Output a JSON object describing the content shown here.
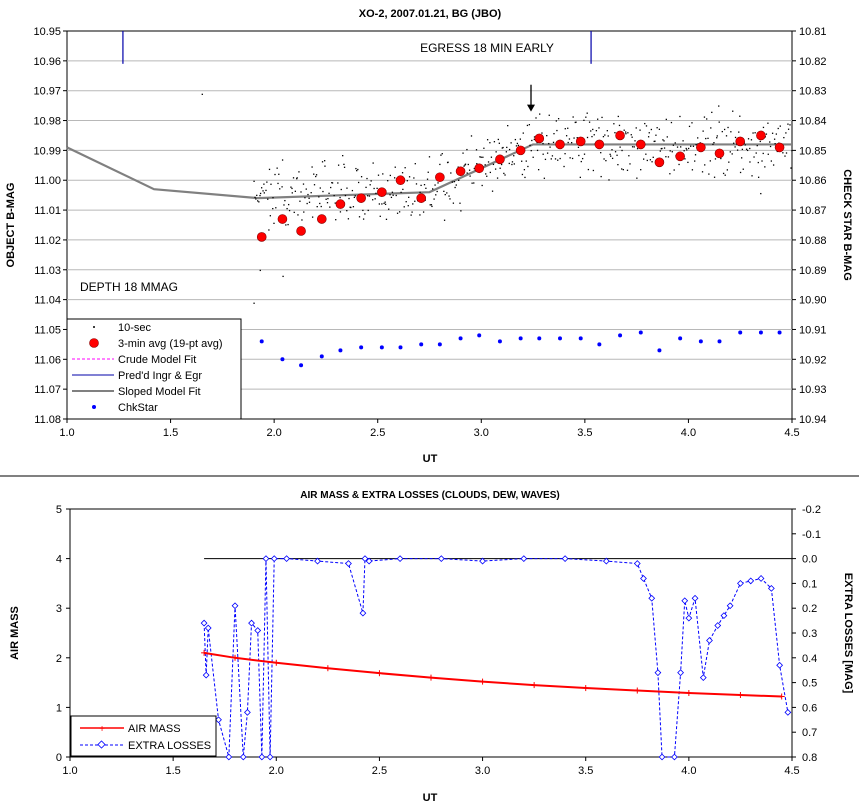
{
  "chart_data": [
    {
      "type": "scatter",
      "title": "XO-2, 2007.01.21, BG (JBO)",
      "xlabel": "UT",
      "ylabel": "OBJECT B-MAG",
      "y2label": "CHECK STAR B-MAG",
      "xlim": [
        1.0,
        4.5
      ],
      "ylim": [
        10.95,
        11.08
      ],
      "y_inverted": true,
      "y2lim": [
        10.81,
        10.94
      ],
      "xticks": [
        "1.0",
        "1.5",
        "2.0",
        "2.5",
        "3.0",
        "3.5",
        "4.0",
        "4.5"
      ],
      "yticks": [
        "10.95",
        "10.96",
        "10.97",
        "10.98",
        "10.99",
        "11.00",
        "11.01",
        "11.02",
        "11.03",
        "11.04",
        "11.05",
        "11.06",
        "11.07",
        "11.08"
      ],
      "y2ticks": [
        "10.81",
        "10.82",
        "10.83",
        "10.84",
        "10.85",
        "10.86",
        "10.87",
        "10.88",
        "10.89",
        "10.90",
        "10.91",
        "10.92",
        "10.93",
        "10.94"
      ],
      "grid": "horizontal",
      "legend_position": "bottom-left",
      "annotations": [
        {
          "text": "EGRESS 18 MIN EARLY",
          "x": 3.23,
          "y": 10.962
        },
        {
          "text": "DEPTH 18 MMAG",
          "x": 1.05,
          "y": 11.043
        }
      ],
      "arrow": {
        "x": 3.24,
        "y_from": 10.968,
        "y_to": 10.977
      },
      "series": [
        {
          "name": "10-sec",
          "marker": "dot",
          "color": "#000000",
          "seed": 7,
          "start": 1.9,
          "end": 4.5,
          "count": 560,
          "scatter": 0.0075,
          "extra_points": [
            [
              1.65,
              10.971
            ],
            [
              1.9,
              11.041
            ],
            [
              1.93,
              11.03
            ],
            [
              2.04,
              11.032
            ]
          ]
        },
        {
          "name": "3-min avg (19-pt avg)",
          "marker": "circle",
          "color": "#ff0000",
          "x": [
            1.94,
            2.04,
            2.13,
            2.23,
            2.32,
            2.42,
            2.52,
            2.61,
            2.71,
            2.8,
            2.9,
            2.99,
            3.09,
            3.19,
            3.28,
            3.38,
            3.48,
            3.57,
            3.67,
            3.77,
            3.86,
            3.96,
            4.06,
            4.15,
            4.25,
            4.35,
            4.44
          ],
          "y": [
            11.019,
            11.013,
            11.017,
            11.013,
            11.008,
            11.006,
            11.004,
            11.0,
            11.006,
            10.999,
            10.997,
            10.996,
            10.993,
            10.99,
            10.986,
            10.988,
            10.987,
            10.988,
            10.985,
            10.988,
            10.994,
            10.992,
            10.989,
            10.991,
            10.987,
            10.985,
            10.989
          ]
        },
        {
          "name": "Crude Model Fit",
          "line": "dashed",
          "color": "#ff00ff",
          "x": [],
          "y": []
        },
        {
          "name": "Pred'd Ingr & Egr",
          "line": "solid",
          "color": "#0000aa",
          "x": [
            1.27,
            3.53
          ],
          "y_top": 10.95,
          "y_bottom": 10.961
        },
        {
          "name": "Sloped Model Fit",
          "line": "solid",
          "color": "#808080",
          "x": [
            1.0,
            1.42,
            1.92,
            2.75,
            3.25,
            4.5
          ],
          "y": [
            10.989,
            11.003,
            11.006,
            11.004,
            10.988,
            10.988
          ]
        },
        {
          "name": "ChkStar",
          "marker": "dot-large",
          "color": "#0000ff",
          "axis": "y2",
          "x": [
            1.94,
            2.04,
            2.13,
            2.23,
            2.32,
            2.42,
            2.52,
            2.61,
            2.71,
            2.8,
            2.9,
            2.99,
            3.09,
            3.19,
            3.28,
            3.38,
            3.48,
            3.57,
            3.67,
            3.77,
            3.86,
            3.96,
            4.06,
            4.15,
            4.25,
            4.35,
            4.44
          ],
          "y": [
            10.914,
            10.92,
            10.922,
            10.919,
            10.917,
            10.916,
            10.916,
            10.916,
            10.915,
            10.915,
            10.913,
            10.912,
            10.914,
            10.913,
            10.913,
            10.913,
            10.913,
            10.915,
            10.912,
            10.911,
            10.917,
            10.913,
            10.914,
            10.914,
            10.911,
            10.911,
            10.911
          ]
        }
      ]
    },
    {
      "type": "line",
      "title": "AIR MASS & EXTRA LOSSES (CLOUDS, DEW, WAVES)",
      "xlabel": "UT",
      "ylabel": "AIR MASS",
      "y2label": "EXTRA LOSSES [MAG]",
      "xlim": [
        1.0,
        4.5
      ],
      "ylim": [
        0,
        5
      ],
      "y2lim": [
        -0.2,
        0.8
      ],
      "y2_inverted": true,
      "xticks": [
        "1.0",
        "1.5",
        "2.0",
        "2.5",
        "3.0",
        "3.5",
        "4.0",
        "4.5"
      ],
      "yticks": [
        "0",
        "1",
        "2",
        "3",
        "4",
        "5"
      ],
      "y2ticks": [
        "-0.2",
        "-0.1",
        "0.0",
        "0.1",
        "0.2",
        "0.3",
        "0.4",
        "0.5",
        "0.6",
        "0.7",
        "0.8"
      ],
      "grid": "none",
      "legend_position": "bottom-left",
      "reference_line": {
        "y2": 0.0,
        "x": [
          1.65,
          4.5
        ],
        "color": "#000000"
      },
      "series": [
        {
          "name": "AIR MASS",
          "color": "#ff0000",
          "marker": "plus",
          "x": [
            1.65,
            1.8,
            2.0,
            2.25,
            2.5,
            2.75,
            3.0,
            3.25,
            3.5,
            3.75,
            4.0,
            4.25,
            4.45
          ],
          "y": [
            2.1,
            2.0,
            1.9,
            1.79,
            1.69,
            1.6,
            1.52,
            1.45,
            1.39,
            1.34,
            1.29,
            1.25,
            1.22
          ]
        },
        {
          "name": "EXTRA LOSSES",
          "color": "#0000ff",
          "marker": "diamond",
          "line": "dashed",
          "axis": "y2",
          "x": [
            1.65,
            1.66,
            1.67,
            1.72,
            1.77,
            1.8,
            1.84,
            1.86,
            1.88,
            1.91,
            1.93,
            1.95,
            1.97,
            1.99,
            2.05,
            2.2,
            2.35,
            2.42,
            2.43,
            2.45,
            2.6,
            2.8,
            3.0,
            3.2,
            3.4,
            3.6,
            3.75,
            3.78,
            3.82,
            3.85,
            3.87,
            3.93,
            3.96,
            3.98,
            4.0,
            4.03,
            4.07,
            4.1,
            4.14,
            4.17,
            4.2,
            4.25,
            4.3,
            4.35,
            4.4,
            4.44,
            4.48
          ],
          "y": [
            0.26,
            0.47,
            0.28,
            0.65,
            0.8,
            0.19,
            0.8,
            0.62,
            0.26,
            0.29,
            0.8,
            0.0,
            0.8,
            0.0,
            0.0,
            0.01,
            0.02,
            0.22,
            0.0,
            0.01,
            0.0,
            0.0,
            0.01,
            0.0,
            0.0,
            0.01,
            0.02,
            0.08,
            0.16,
            0.46,
            0.8,
            0.8,
            0.46,
            0.17,
            0.24,
            0.16,
            0.48,
            0.33,
            0.27,
            0.23,
            0.19,
            0.1,
            0.09,
            0.08,
            0.12,
            0.43,
            0.62
          ]
        }
      ]
    }
  ],
  "legend_top": [
    "10-sec",
    "3-min avg (19-pt avg)",
    "Crude Model Fit",
    "Pred'd Ingr & Egr",
    "Sloped Model Fit",
    "ChkStar"
  ],
  "legend_bottom": [
    "AIR MASS",
    "EXTRA LOSSES"
  ]
}
